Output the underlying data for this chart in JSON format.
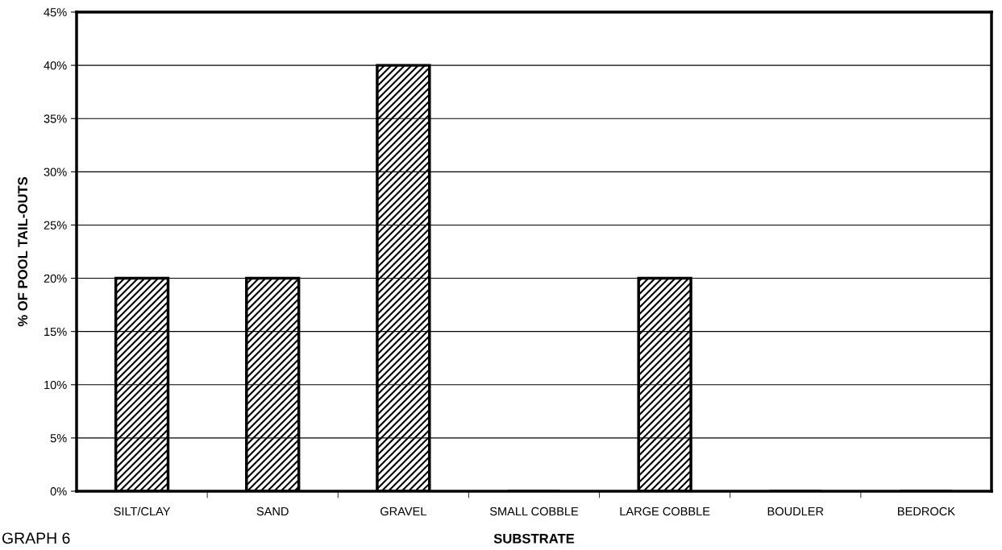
{
  "chart_data": {
    "type": "bar",
    "xlabel": "SUBSTRATE",
    "ylabel": "% OF POOL TAIL-OUTS",
    "categories": [
      "SILT/CLAY",
      "SAND",
      "GRAVEL",
      "SMALL COBBLE",
      "LARGE COBBLE",
      "BOUDLER",
      "BEDROCK"
    ],
    "values": [
      20,
      20,
      40,
      0,
      20,
      0,
      0
    ],
    "color": "#000000",
    "ylim": [
      0,
      45
    ],
    "yticks": [
      {
        "value": 0,
        "label": "0%"
      },
      {
        "value": 5,
        "label": "5%"
      },
      {
        "value": 10,
        "label": "10%"
      },
      {
        "value": 15,
        "label": "15%"
      },
      {
        "value": 20,
        "label": "20%"
      },
      {
        "value": 25,
        "label": "25%"
      },
      {
        "value": 30,
        "label": "30%"
      },
      {
        "value": 35,
        "label": "35%"
      },
      {
        "value": 40,
        "label": "40%"
      },
      {
        "value": 45,
        "label": "45%"
      }
    ],
    "grid": "y",
    "annotations": [
      "GRAPH 6"
    ]
  }
}
